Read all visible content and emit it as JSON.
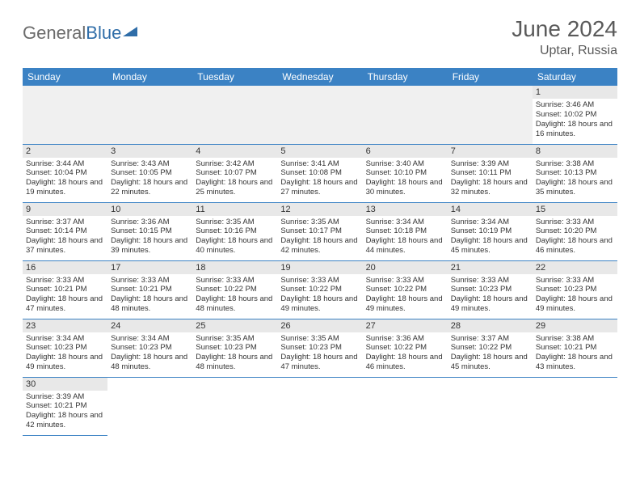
{
  "brand": {
    "part1": "General",
    "part2": "Blue"
  },
  "title": "June 2024",
  "location": "Uptar, Russia",
  "colors": {
    "header_bg": "#3b82c4",
    "header_text": "#ffffff",
    "daynum_bg": "#e8e8e8",
    "border": "#3b82c4",
    "empty_bg": "#f0f0f0",
    "text": "#333333",
    "title_text": "#5a5a5a"
  },
  "weekdays": [
    "Sunday",
    "Monday",
    "Tuesday",
    "Wednesday",
    "Thursday",
    "Friday",
    "Saturday"
  ],
  "layout": {
    "columns": 7,
    "rows": 6,
    "first_day_column": 6
  },
  "days": [
    {
      "n": "1",
      "sunrise": "Sunrise: 3:46 AM",
      "sunset": "Sunset: 10:02 PM",
      "daylight": "Daylight: 18 hours and 16 minutes."
    },
    {
      "n": "2",
      "sunrise": "Sunrise: 3:44 AM",
      "sunset": "Sunset: 10:04 PM",
      "daylight": "Daylight: 18 hours and 19 minutes."
    },
    {
      "n": "3",
      "sunrise": "Sunrise: 3:43 AM",
      "sunset": "Sunset: 10:05 PM",
      "daylight": "Daylight: 18 hours and 22 minutes."
    },
    {
      "n": "4",
      "sunrise": "Sunrise: 3:42 AM",
      "sunset": "Sunset: 10:07 PM",
      "daylight": "Daylight: 18 hours and 25 minutes."
    },
    {
      "n": "5",
      "sunrise": "Sunrise: 3:41 AM",
      "sunset": "Sunset: 10:08 PM",
      "daylight": "Daylight: 18 hours and 27 minutes."
    },
    {
      "n": "6",
      "sunrise": "Sunrise: 3:40 AM",
      "sunset": "Sunset: 10:10 PM",
      "daylight": "Daylight: 18 hours and 30 minutes."
    },
    {
      "n": "7",
      "sunrise": "Sunrise: 3:39 AM",
      "sunset": "Sunset: 10:11 PM",
      "daylight": "Daylight: 18 hours and 32 minutes."
    },
    {
      "n": "8",
      "sunrise": "Sunrise: 3:38 AM",
      "sunset": "Sunset: 10:13 PM",
      "daylight": "Daylight: 18 hours and 35 minutes."
    },
    {
      "n": "9",
      "sunrise": "Sunrise: 3:37 AM",
      "sunset": "Sunset: 10:14 PM",
      "daylight": "Daylight: 18 hours and 37 minutes."
    },
    {
      "n": "10",
      "sunrise": "Sunrise: 3:36 AM",
      "sunset": "Sunset: 10:15 PM",
      "daylight": "Daylight: 18 hours and 39 minutes."
    },
    {
      "n": "11",
      "sunrise": "Sunrise: 3:35 AM",
      "sunset": "Sunset: 10:16 PM",
      "daylight": "Daylight: 18 hours and 40 minutes."
    },
    {
      "n": "12",
      "sunrise": "Sunrise: 3:35 AM",
      "sunset": "Sunset: 10:17 PM",
      "daylight": "Daylight: 18 hours and 42 minutes."
    },
    {
      "n": "13",
      "sunrise": "Sunrise: 3:34 AM",
      "sunset": "Sunset: 10:18 PM",
      "daylight": "Daylight: 18 hours and 44 minutes."
    },
    {
      "n": "14",
      "sunrise": "Sunrise: 3:34 AM",
      "sunset": "Sunset: 10:19 PM",
      "daylight": "Daylight: 18 hours and 45 minutes."
    },
    {
      "n": "15",
      "sunrise": "Sunrise: 3:33 AM",
      "sunset": "Sunset: 10:20 PM",
      "daylight": "Daylight: 18 hours and 46 minutes."
    },
    {
      "n": "16",
      "sunrise": "Sunrise: 3:33 AM",
      "sunset": "Sunset: 10:21 PM",
      "daylight": "Daylight: 18 hours and 47 minutes."
    },
    {
      "n": "17",
      "sunrise": "Sunrise: 3:33 AM",
      "sunset": "Sunset: 10:21 PM",
      "daylight": "Daylight: 18 hours and 48 minutes."
    },
    {
      "n": "18",
      "sunrise": "Sunrise: 3:33 AM",
      "sunset": "Sunset: 10:22 PM",
      "daylight": "Daylight: 18 hours and 48 minutes."
    },
    {
      "n": "19",
      "sunrise": "Sunrise: 3:33 AM",
      "sunset": "Sunset: 10:22 PM",
      "daylight": "Daylight: 18 hours and 49 minutes."
    },
    {
      "n": "20",
      "sunrise": "Sunrise: 3:33 AM",
      "sunset": "Sunset: 10:22 PM",
      "daylight": "Daylight: 18 hours and 49 minutes."
    },
    {
      "n": "21",
      "sunrise": "Sunrise: 3:33 AM",
      "sunset": "Sunset: 10:23 PM",
      "daylight": "Daylight: 18 hours and 49 minutes."
    },
    {
      "n": "22",
      "sunrise": "Sunrise: 3:33 AM",
      "sunset": "Sunset: 10:23 PM",
      "daylight": "Daylight: 18 hours and 49 minutes."
    },
    {
      "n": "23",
      "sunrise": "Sunrise: 3:34 AM",
      "sunset": "Sunset: 10:23 PM",
      "daylight": "Daylight: 18 hours and 49 minutes."
    },
    {
      "n": "24",
      "sunrise": "Sunrise: 3:34 AM",
      "sunset": "Sunset: 10:23 PM",
      "daylight": "Daylight: 18 hours and 48 minutes."
    },
    {
      "n": "25",
      "sunrise": "Sunrise: 3:35 AM",
      "sunset": "Sunset: 10:23 PM",
      "daylight": "Daylight: 18 hours and 48 minutes."
    },
    {
      "n": "26",
      "sunrise": "Sunrise: 3:35 AM",
      "sunset": "Sunset: 10:23 PM",
      "daylight": "Daylight: 18 hours and 47 minutes."
    },
    {
      "n": "27",
      "sunrise": "Sunrise: 3:36 AM",
      "sunset": "Sunset: 10:22 PM",
      "daylight": "Daylight: 18 hours and 46 minutes."
    },
    {
      "n": "28",
      "sunrise": "Sunrise: 3:37 AM",
      "sunset": "Sunset: 10:22 PM",
      "daylight": "Daylight: 18 hours and 45 minutes."
    },
    {
      "n": "29",
      "sunrise": "Sunrise: 3:38 AM",
      "sunset": "Sunset: 10:21 PM",
      "daylight": "Daylight: 18 hours and 43 minutes."
    },
    {
      "n": "30",
      "sunrise": "Sunrise: 3:39 AM",
      "sunset": "Sunset: 10:21 PM",
      "daylight": "Daylight: 18 hours and 42 minutes."
    }
  ]
}
